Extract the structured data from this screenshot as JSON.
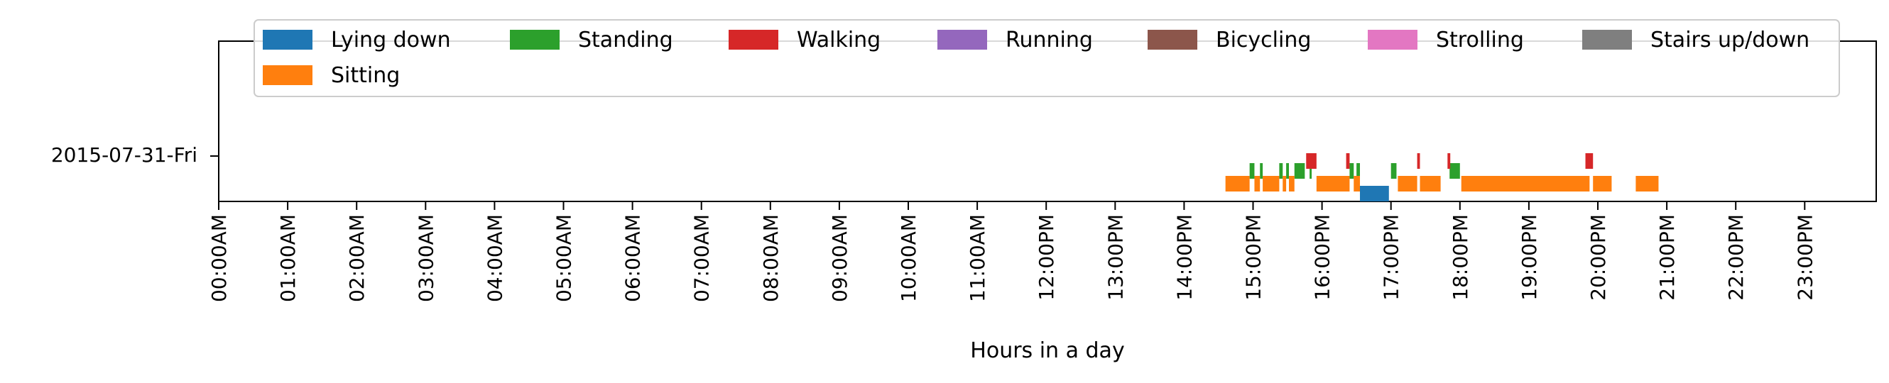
{
  "chart_data": {
    "type": "timeline",
    "xlabel": "Hours in a day",
    "xlim_hours": [
      0,
      24
    ],
    "row_label": "2015-07-31-Fri",
    "x_ticks": [
      "00:00AM",
      "01:00AM",
      "02:00AM",
      "03:00AM",
      "04:00AM",
      "05:00AM",
      "06:00AM",
      "07:00AM",
      "08:00AM",
      "09:00AM",
      "10:00AM",
      "11:00AM",
      "12:00PM",
      "13:00PM",
      "14:00PM",
      "15:00PM",
      "16:00PM",
      "17:00PM",
      "18:00PM",
      "19:00PM",
      "20:00PM",
      "21:00PM",
      "22:00PM",
      "23:00PM"
    ],
    "legend_position": "top",
    "series": [
      {
        "name": "Lying down",
        "color": "#1f77b4",
        "intervals": [
          [
            16.55,
            16.97
          ]
        ]
      },
      {
        "name": "Standing",
        "color": "#2ca02c",
        "intervals": [
          [
            14.95,
            15.02
          ],
          [
            15.1,
            15.14
          ],
          [
            15.38,
            15.43
          ],
          [
            15.48,
            15.52
          ],
          [
            15.6,
            15.75
          ],
          [
            15.82,
            15.85
          ],
          [
            16.4,
            16.46
          ],
          [
            16.5,
            16.55
          ],
          [
            17.0,
            17.08
          ],
          [
            17.85,
            18.0
          ]
        ]
      },
      {
        "name": "Walking",
        "color": "#d62728",
        "intervals": [
          [
            15.77,
            15.92
          ],
          [
            16.35,
            16.4
          ],
          [
            17.38,
            17.42
          ],
          [
            17.82,
            17.86
          ],
          [
            19.82,
            19.93
          ]
        ]
      },
      {
        "name": "Running",
        "color": "#9467bd",
        "intervals": []
      },
      {
        "name": "Bicycling",
        "color": "#8c564b",
        "intervals": []
      },
      {
        "name": "Strolling",
        "color": "#e377c2",
        "intervals": []
      },
      {
        "name": "Stairs up/down",
        "color": "#7f7f7f",
        "intervals": []
      },
      {
        "name": "Sitting",
        "color": "#ff7f0e",
        "intervals": [
          [
            14.6,
            14.95
          ],
          [
            15.02,
            15.1
          ],
          [
            15.14,
            15.38
          ],
          [
            15.43,
            15.48
          ],
          [
            15.52,
            15.6
          ],
          [
            15.92,
            16.4
          ],
          [
            16.46,
            16.55
          ],
          [
            17.1,
            17.38
          ],
          [
            17.42,
            17.72
          ],
          [
            18.02,
            19.88
          ],
          [
            19.93,
            20.2
          ],
          [
            20.55,
            20.88
          ]
        ]
      }
    ]
  }
}
